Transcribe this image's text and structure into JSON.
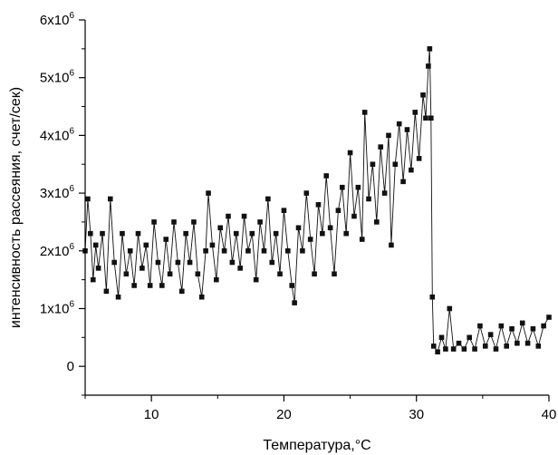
{
  "chart_data": {
    "type": "scatter",
    "title": "",
    "xlabel": "Температура,°С",
    "ylabel": "интенсивность рассеяния, счет/сек)",
    "xlim": [
      5,
      40
    ],
    "ylim": [
      -500000,
      6000000
    ],
    "x_ticks": [
      {
        "value": 10,
        "label": "10"
      },
      {
        "value": 20,
        "label": "20"
      },
      {
        "value": 30,
        "label": "30"
      },
      {
        "value": 40,
        "label": "40"
      }
    ],
    "y_ticks": [
      {
        "value": 0,
        "base": "0",
        "exp": ""
      },
      {
        "value": 1000000,
        "base": "1x10",
        "exp": "6"
      },
      {
        "value": 2000000,
        "base": "2x10",
        "exp": "6"
      },
      {
        "value": 3000000,
        "base": "3x10",
        "exp": "6"
      },
      {
        "value": 4000000,
        "base": "4x10",
        "exp": "6"
      },
      {
        "value": 5000000,
        "base": "5x10",
        "exp": "6"
      },
      {
        "value": 6000000,
        "base": "6x10",
        "exp": "6"
      }
    ],
    "marker": "square",
    "connected": true,
    "grid": false,
    "series_color": "#111111",
    "series": [
      {
        "points": [
          [
            5.0,
            2000000
          ],
          [
            5.2,
            2900000
          ],
          [
            5.4,
            2300000
          ],
          [
            5.6,
            1500000
          ],
          [
            5.8,
            2100000
          ],
          [
            6.0,
            1700000
          ],
          [
            6.3,
            2300000
          ],
          [
            6.6,
            1300000
          ],
          [
            6.9,
            2900000
          ],
          [
            7.2,
            1800000
          ],
          [
            7.5,
            1200000
          ],
          [
            7.8,
            2300000
          ],
          [
            8.1,
            1600000
          ],
          [
            8.4,
            2000000
          ],
          [
            8.7,
            1400000
          ],
          [
            9.0,
            2300000
          ],
          [
            9.3,
            1700000
          ],
          [
            9.6,
            2100000
          ],
          [
            9.9,
            1400000
          ],
          [
            10.2,
            2500000
          ],
          [
            10.5,
            1800000
          ],
          [
            10.8,
            1400000
          ],
          [
            11.1,
            2200000
          ],
          [
            11.4,
            1600000
          ],
          [
            11.7,
            2500000
          ],
          [
            12.0,
            1800000
          ],
          [
            12.3,
            1300000
          ],
          [
            12.6,
            2300000
          ],
          [
            12.9,
            1800000
          ],
          [
            13.2,
            2500000
          ],
          [
            13.5,
            1600000
          ],
          [
            13.8,
            1200000
          ],
          [
            14.1,
            2000000
          ],
          [
            14.3,
            3000000
          ],
          [
            14.6,
            2100000
          ],
          [
            14.9,
            1500000
          ],
          [
            15.2,
            2400000
          ],
          [
            15.5,
            2000000
          ],
          [
            15.8,
            2600000
          ],
          [
            16.1,
            1800000
          ],
          [
            16.4,
            2300000
          ],
          [
            16.7,
            1700000
          ],
          [
            17.0,
            2600000
          ],
          [
            17.3,
            2000000
          ],
          [
            17.6,
            2300000
          ],
          [
            17.9,
            1500000
          ],
          [
            18.2,
            2500000
          ],
          [
            18.5,
            2000000
          ],
          [
            18.8,
            2900000
          ],
          [
            19.1,
            1800000
          ],
          [
            19.4,
            2300000
          ],
          [
            19.7,
            1600000
          ],
          [
            20.0,
            2700000
          ],
          [
            20.3,
            2000000
          ],
          [
            20.6,
            1400000
          ],
          [
            20.8,
            1100000
          ],
          [
            21.1,
            2400000
          ],
          [
            21.4,
            2000000
          ],
          [
            21.7,
            3000000
          ],
          [
            22.0,
            2200000
          ],
          [
            22.3,
            1600000
          ],
          [
            22.6,
            2800000
          ],
          [
            22.9,
            2300000
          ],
          [
            23.2,
            3300000
          ],
          [
            23.5,
            2400000
          ],
          [
            23.8,
            1600000
          ],
          [
            24.1,
            2700000
          ],
          [
            24.4,
            3100000
          ],
          [
            24.7,
            2300000
          ],
          [
            25.0,
            3700000
          ],
          [
            25.3,
            2600000
          ],
          [
            25.6,
            3100000
          ],
          [
            25.9,
            2200000
          ],
          [
            26.1,
            4400000
          ],
          [
            26.4,
            2900000
          ],
          [
            26.7,
            3500000
          ],
          [
            27.0,
            2500000
          ],
          [
            27.3,
            3800000
          ],
          [
            27.6,
            3000000
          ],
          [
            27.9,
            4000000
          ],
          [
            28.1,
            2100000
          ],
          [
            28.4,
            3500000
          ],
          [
            28.7,
            4200000
          ],
          [
            29.0,
            3200000
          ],
          [
            29.3,
            4100000
          ],
          [
            29.6,
            3400000
          ],
          [
            29.9,
            4400000
          ],
          [
            30.2,
            3600000
          ],
          [
            30.5,
            4700000
          ],
          [
            30.7,
            4300000
          ],
          [
            30.9,
            5200000
          ],
          [
            31.0,
            5500000
          ],
          [
            31.1,
            4300000
          ],
          [
            31.2,
            1200000
          ],
          [
            31.3,
            350000
          ],
          [
            31.6,
            250000
          ],
          [
            31.9,
            500000
          ],
          [
            32.2,
            300000
          ],
          [
            32.5,
            1000000
          ],
          [
            32.8,
            300000
          ],
          [
            33.2,
            400000
          ],
          [
            33.6,
            300000
          ],
          [
            34.0,
            500000
          ],
          [
            34.4,
            300000
          ],
          [
            34.8,
            700000
          ],
          [
            35.2,
            350000
          ],
          [
            35.6,
            550000
          ],
          [
            36.0,
            300000
          ],
          [
            36.4,
            700000
          ],
          [
            36.8,
            350000
          ],
          [
            37.2,
            650000
          ],
          [
            37.6,
            400000
          ],
          [
            38.0,
            750000
          ],
          [
            38.4,
            400000
          ],
          [
            38.8,
            650000
          ],
          [
            39.2,
            350000
          ],
          [
            39.6,
            700000
          ],
          [
            40.0,
            850000
          ]
        ]
      }
    ]
  }
}
